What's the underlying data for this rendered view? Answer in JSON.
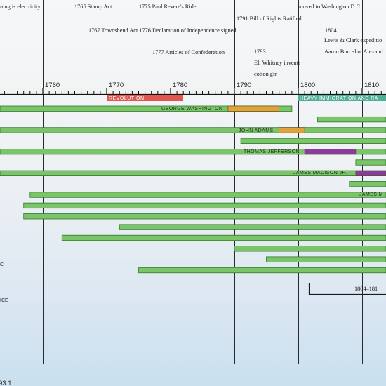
{
  "events": [
    {
      "id": "electricity",
      "text": "ning is electricity"
    },
    {
      "id": "stamp_act",
      "text": "1765  Stamp Act"
    },
    {
      "id": "paul_revere",
      "text": "1775  Paul Revere's Ride"
    },
    {
      "id": "washington_dc",
      "text": "moved to Washington D.C."
    },
    {
      "id": "bill_of_rights",
      "text": "1791  Bill of Rights Ratified"
    },
    {
      "id": "townshend",
      "text": "1767  Townshend Act 1776  Declaration of Independence signed"
    },
    {
      "id": "year_1804",
      "text": "1804"
    },
    {
      "id": "lewis_clark",
      "text": "Lewis & Clark expeditio"
    },
    {
      "id": "articles",
      "text": "1777  Articles of Confederation"
    },
    {
      "id": "year_1793",
      "text": "1793"
    },
    {
      "id": "burr",
      "text": "Aaron Burr shot Alexand"
    },
    {
      "id": "whitney_1",
      "text": "Eli Whitney invents"
    },
    {
      "id": "whitney_2",
      "text": "cotton gin"
    }
  ],
  "axis": {
    "ticks": [
      "1760",
      "1770",
      "1780",
      "1790",
      "1800",
      "1810"
    ]
  },
  "eras": {
    "revolution": "REVOLUTION",
    "immigration": "HEAVY IMMIGRATION AND RA"
  },
  "rows": [
    {
      "label": "GEORGE WASHINGTON",
      "start": 1732,
      "end": 1799,
      "term": [
        1789,
        1797
      ]
    },
    {
      "start": 1803,
      "end": 1815
    },
    {
      "label": "JOHN ADAMS",
      "start": 1735,
      "end": 1826,
      "term": [
        1797,
        1801
      ]
    },
    {
      "start": 1791,
      "end": 1815
    },
    {
      "label": "THOMAS JEFFERSON",
      "start": 1743,
      "end": 1826,
      "term": [
        1801,
        1809
      ]
    },
    {
      "start": 1809,
      "end": 1815
    },
    {
      "label": "JAMES MADISON JR.",
      "start": 1751,
      "end": 1836,
      "term": [
        1809,
        1815
      ]
    },
    {
      "start": 1808,
      "end": 1815
    },
    {
      "label": "JAMES M",
      "start": 1758,
      "end": 1831
    },
    {
      "start": 1757,
      "end": 1815
    },
    {
      "start": 1757,
      "end": 1815
    },
    {
      "start": 1772,
      "end": 1815
    },
    {
      "start": 1763,
      "end": 1815
    },
    {
      "start": 1790,
      "end": 1815
    },
    {
      "start": 1795,
      "end": 1815
    },
    {
      "start": 1775,
      "end": 1815
    }
  ],
  "bracket_label": "1804–181",
  "side_labels": [
    "C",
    "ICE"
  ],
  "footnote": "93 1",
  "colors": {
    "life": "#7cc46a",
    "term_adams_washington": "#e2a23a",
    "term_jefferson": "#8a3b9c",
    "revolution": "#e0574f",
    "immigration": "#4fae96"
  }
}
